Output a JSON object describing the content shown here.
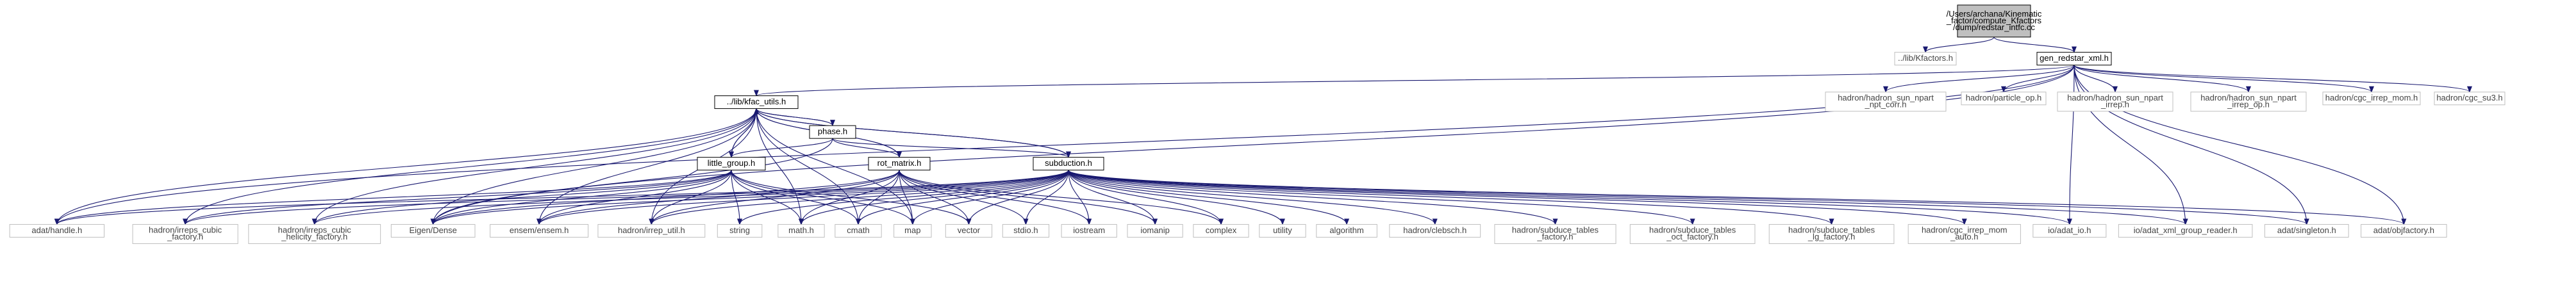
{
  "colors": {
    "background": "#ffffff",
    "edge": "#191970",
    "node_border": "#000000",
    "external_border": "#bfbfbf",
    "root_fill": "#bfbfbf",
    "node_fill": "#ffffff",
    "external_text": "#444444",
    "text": "#000000"
  },
  "nodes": [
    {
      "id": "root",
      "kind": "root",
      "lines": [
        "/Users/archana/Kinematic",
        "_factor/compute_Kfactors",
        "/dump/redstar_intfc.cc"
      ]
    },
    {
      "id": "kfactors",
      "kind": "external",
      "lines": [
        "../lib/Kfactors.h"
      ]
    },
    {
      "id": "gen",
      "kind": "internal",
      "lines": [
        "gen_redstar_xml.h"
      ]
    },
    {
      "id": "utils",
      "kind": "internal",
      "lines": [
        "../lib/kfac_utils.h"
      ]
    },
    {
      "id": "npt_corr",
      "kind": "external",
      "lines": [
        "hadron/hadron_sun_npart",
        "_npt_corr.h"
      ]
    },
    {
      "id": "particle_op",
      "kind": "external",
      "lines": [
        "hadron/particle_op.h"
      ]
    },
    {
      "id": "npart_irrep",
      "kind": "external",
      "lines": [
        "hadron/hadron_sun_npart",
        "_irrep.h"
      ]
    },
    {
      "id": "npart_irrep_op",
      "kind": "external",
      "lines": [
        "hadron/hadron_sun_npart",
        "_irrep_op.h"
      ]
    },
    {
      "id": "cgc_mom",
      "kind": "external",
      "lines": [
        "hadron/cgc_irrep_mom.h"
      ]
    },
    {
      "id": "cgc_su3",
      "kind": "external",
      "lines": [
        "hadron/cgc_su3.h"
      ]
    },
    {
      "id": "phase",
      "kind": "internal",
      "lines": [
        "phase.h"
      ]
    },
    {
      "id": "little",
      "kind": "internal",
      "lines": [
        "little_group.h"
      ]
    },
    {
      "id": "rot",
      "kind": "internal",
      "lines": [
        "rot_matrix.h"
      ]
    },
    {
      "id": "subd",
      "kind": "internal",
      "lines": [
        "subduction.h"
      ]
    },
    {
      "id": "handle",
      "kind": "external",
      "lines": [
        "adat/handle.h"
      ]
    },
    {
      "id": "cubic_f",
      "kind": "external",
      "lines": [
        "hadron/irreps_cubic",
        "_factory.h"
      ]
    },
    {
      "id": "cubic_h",
      "kind": "external",
      "lines": [
        "hadron/irreps_cubic",
        "_helicity_factory.h"
      ]
    },
    {
      "id": "eigen",
      "kind": "external",
      "lines": [
        "Eigen/Dense"
      ]
    },
    {
      "id": "ensem",
      "kind": "external",
      "lines": [
        "ensem/ensem.h"
      ]
    },
    {
      "id": "irrep_util",
      "kind": "external",
      "lines": [
        "hadron/irrep_util.h"
      ]
    },
    {
      "id": "string",
      "kind": "external",
      "lines": [
        "string"
      ]
    },
    {
      "id": "math",
      "kind": "external",
      "lines": [
        "math.h"
      ]
    },
    {
      "id": "cmath",
      "kind": "external",
      "lines": [
        "cmath"
      ]
    },
    {
      "id": "map",
      "kind": "external",
      "lines": [
        "map"
      ]
    },
    {
      "id": "vector",
      "kind": "external",
      "lines": [
        "vector"
      ]
    },
    {
      "id": "stdio",
      "kind": "external",
      "lines": [
        "stdio.h"
      ]
    },
    {
      "id": "iostream",
      "kind": "external",
      "lines": [
        "iostream"
      ]
    },
    {
      "id": "iomanip",
      "kind": "external",
      "lines": [
        "iomanip"
      ]
    },
    {
      "id": "complex",
      "kind": "external",
      "lines": [
        "complex"
      ]
    },
    {
      "id": "utility",
      "kind": "external",
      "lines": [
        "utility"
      ]
    },
    {
      "id": "algorithm",
      "kind": "external",
      "lines": [
        "algorithm"
      ]
    },
    {
      "id": "clebsch",
      "kind": "external",
      "lines": [
        "hadron/clebsch.h"
      ]
    },
    {
      "id": "sub_f",
      "kind": "external",
      "lines": [
        "hadron/subduce_tables",
        "_factory.h"
      ]
    },
    {
      "id": "sub_oct",
      "kind": "external",
      "lines": [
        "hadron/subduce_tables",
        "_oct_factory.h"
      ]
    },
    {
      "id": "sub_lg",
      "kind": "external",
      "lines": [
        "hadron/subduce_tables",
        "_lg_factory.h"
      ]
    },
    {
      "id": "cgc_auto",
      "kind": "external",
      "lines": [
        "hadron/cgc_irrep_mom",
        "_auto.h"
      ]
    },
    {
      "id": "adat_io",
      "kind": "external",
      "lines": [
        "io/adat_io.h"
      ]
    },
    {
      "id": "xml_reader",
      "kind": "external",
      "lines": [
        "io/adat_xml_group_reader.h"
      ]
    },
    {
      "id": "singleton",
      "kind": "external",
      "lines": [
        "adat/singleton.h"
      ]
    },
    {
      "id": "objfactory",
      "kind": "external",
      "lines": [
        "adat/objfactory.h"
      ]
    }
  ],
  "edges": [
    [
      "root",
      "kfactors"
    ],
    [
      "root",
      "gen"
    ],
    [
      "gen",
      "utils"
    ],
    [
      "gen",
      "npt_corr"
    ],
    [
      "gen",
      "particle_op"
    ],
    [
      "gen",
      "npart_irrep"
    ],
    [
      "gen",
      "npart_irrep_op"
    ],
    [
      "gen",
      "cgc_mom"
    ],
    [
      "gen",
      "cgc_su3"
    ],
    [
      "gen",
      "handle"
    ],
    [
      "gen",
      "eigen"
    ],
    [
      "gen",
      "adat_io"
    ],
    [
      "gen",
      "xml_reader"
    ],
    [
      "gen",
      "singleton"
    ],
    [
      "gen",
      "objfactory"
    ],
    [
      "utils",
      "phase"
    ],
    [
      "utils",
      "little"
    ],
    [
      "utils",
      "rot"
    ],
    [
      "utils",
      "subd"
    ],
    [
      "utils",
      "handle"
    ],
    [
      "utils",
      "cubic_f"
    ],
    [
      "utils",
      "cubic_h"
    ],
    [
      "utils",
      "eigen"
    ],
    [
      "utils",
      "ensem"
    ],
    [
      "utils",
      "irrep_util"
    ],
    [
      "utils",
      "math"
    ],
    [
      "utils",
      "cmath"
    ],
    [
      "utils",
      "map"
    ],
    [
      "phase",
      "utils"
    ],
    [
      "phase",
      "little"
    ],
    [
      "phase",
      "rot"
    ],
    [
      "phase",
      "subd"
    ],
    [
      "phase",
      "eigen"
    ],
    [
      "rot",
      "utils"
    ],
    [
      "rot",
      "eigen"
    ],
    [
      "rot",
      "ensem"
    ],
    [
      "rot",
      "irrep_util"
    ],
    [
      "rot",
      "math"
    ],
    [
      "rot",
      "cmath"
    ],
    [
      "rot",
      "map"
    ],
    [
      "rot",
      "vector"
    ],
    [
      "rot",
      "stdio"
    ],
    [
      "rot",
      "iostream"
    ],
    [
      "rot",
      "iomanip"
    ],
    [
      "rot",
      "complex"
    ],
    [
      "little",
      "utils"
    ],
    [
      "little",
      "handle"
    ],
    [
      "little",
      "cubic_f"
    ],
    [
      "little",
      "cubic_h"
    ],
    [
      "little",
      "eigen"
    ],
    [
      "little",
      "ensem"
    ],
    [
      "little",
      "irrep_util"
    ],
    [
      "little",
      "string"
    ],
    [
      "little",
      "math"
    ],
    [
      "little",
      "cmath"
    ],
    [
      "little",
      "map"
    ],
    [
      "little",
      "vector"
    ],
    [
      "subd",
      "utils"
    ],
    [
      "subd",
      "handle"
    ],
    [
      "subd",
      "cubic_f"
    ],
    [
      "subd",
      "cubic_h"
    ],
    [
      "subd",
      "eigen"
    ],
    [
      "subd",
      "ensem"
    ],
    [
      "subd",
      "irrep_util"
    ],
    [
      "subd",
      "string"
    ],
    [
      "subd",
      "math"
    ],
    [
      "subd",
      "cmath"
    ],
    [
      "subd",
      "map"
    ],
    [
      "subd",
      "vector"
    ],
    [
      "subd",
      "stdio"
    ],
    [
      "subd",
      "iostream"
    ],
    [
      "subd",
      "iomanip"
    ],
    [
      "subd",
      "complex"
    ],
    [
      "subd",
      "utility"
    ],
    [
      "subd",
      "algorithm"
    ],
    [
      "subd",
      "clebsch"
    ],
    [
      "subd",
      "sub_f"
    ],
    [
      "subd",
      "sub_oct"
    ],
    [
      "subd",
      "sub_lg"
    ],
    [
      "subd",
      "cgc_auto"
    ],
    [
      "subd",
      "adat_io"
    ],
    [
      "subd",
      "xml_reader"
    ],
    [
      "subd",
      "singleton"
    ],
    [
      "subd",
      "objfactory"
    ]
  ]
}
